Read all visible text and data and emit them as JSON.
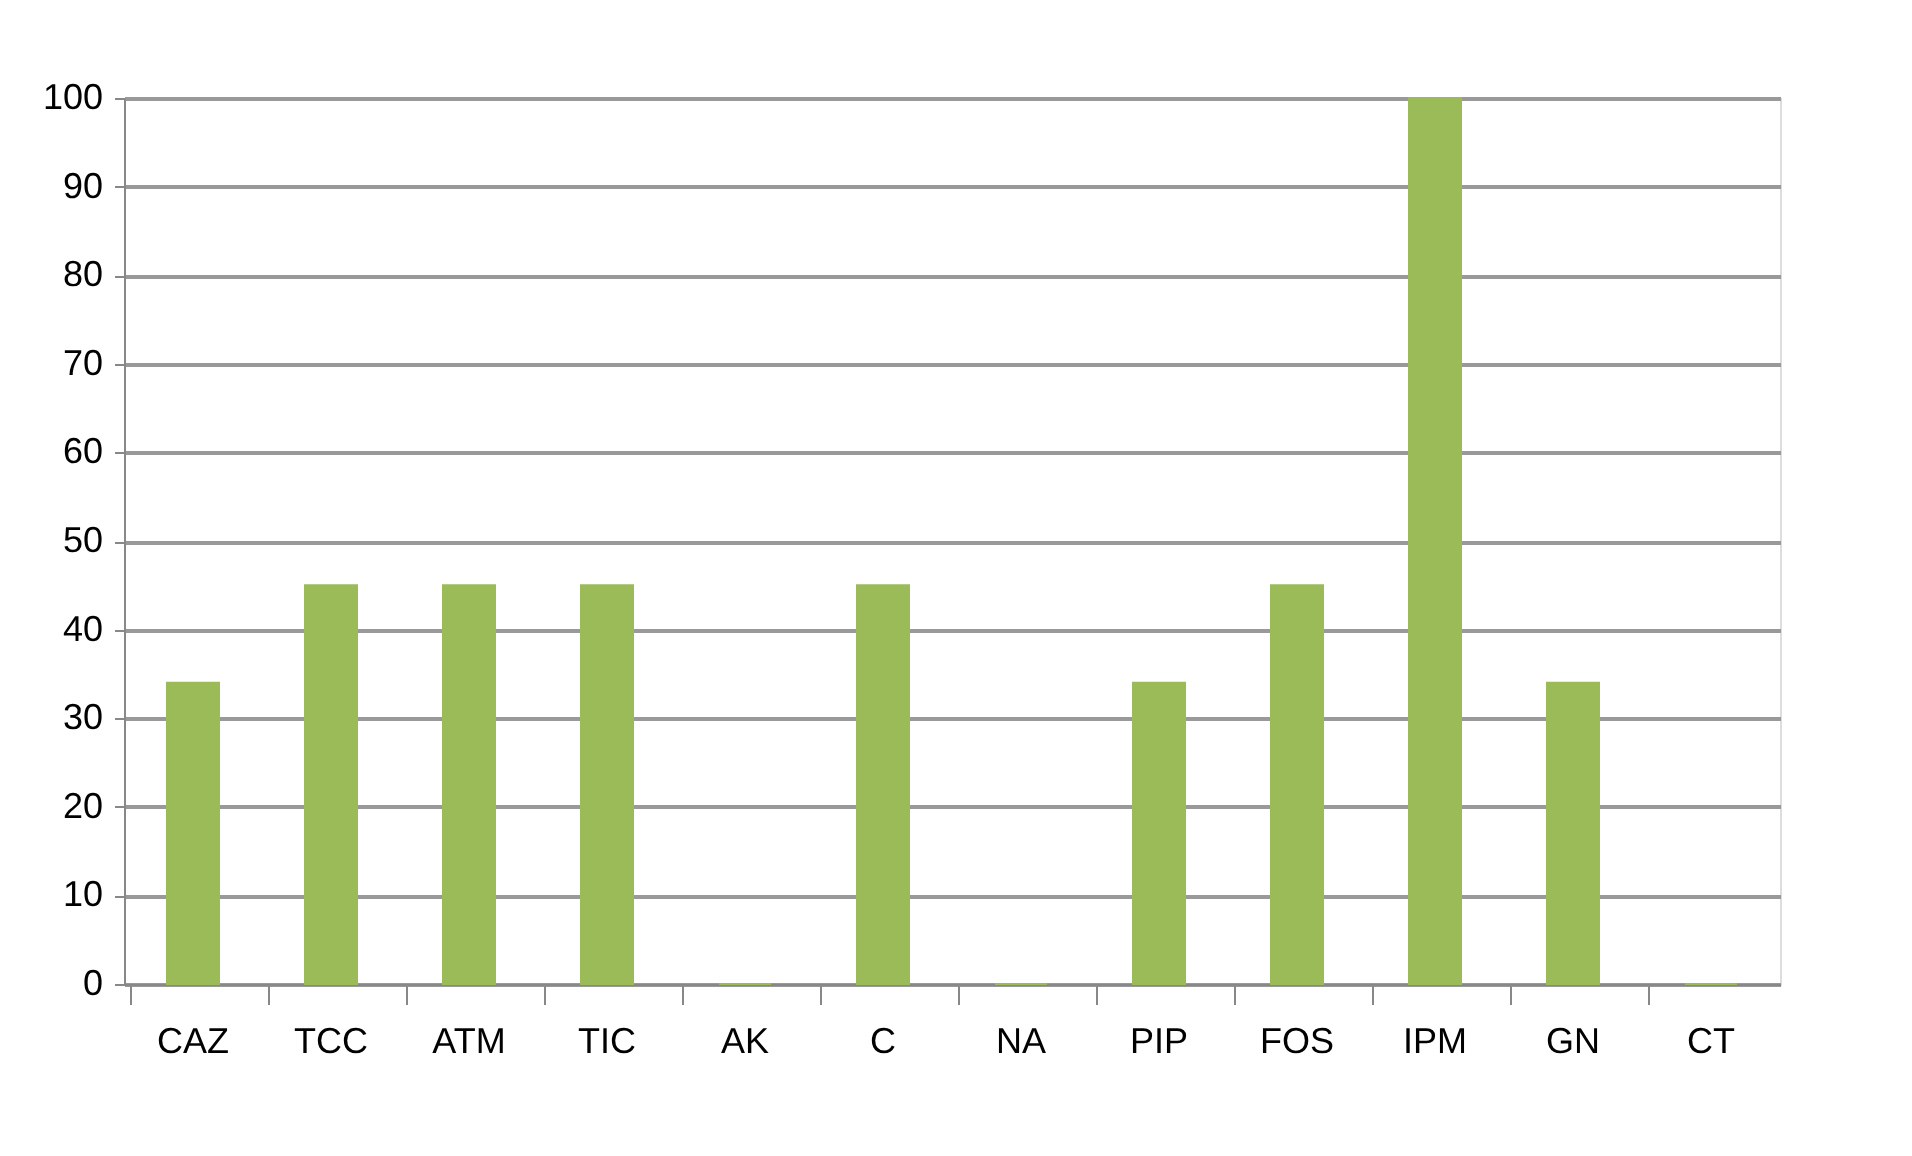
{
  "chart_data": {
    "type": "bar",
    "categories": [
      "CAZ",
      "TCC",
      "ATM",
      "TIC",
      "AK",
      "C",
      "NA",
      "PIP",
      "FOS",
      "IPM",
      "GN",
      "CT"
    ],
    "values": [
      34,
      45,
      45,
      45,
      0,
      45,
      0,
      34,
      45,
      100,
      34,
      0
    ],
    "color": "#9bbb59",
    "ylim": [
      0,
      100
    ],
    "yticks": [
      0,
      10,
      20,
      30,
      40,
      50,
      60,
      70,
      80,
      90,
      100
    ],
    "grid": "y"
  }
}
